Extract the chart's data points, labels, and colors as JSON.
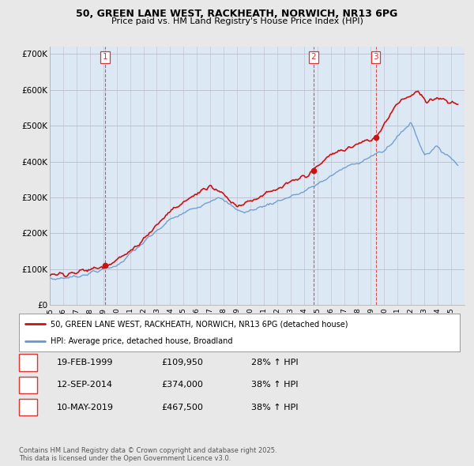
{
  "title_line1": "50, GREEN LANE WEST, RACKHEATH, NORWICH, NR13 6PG",
  "title_line2": "Price paid vs. HM Land Registry's House Price Index (HPI)",
  "background_color": "#e8e8e8",
  "plot_bg_color": "#dde8f5",
  "ylabel": "",
  "ylim": [
    0,
    720000
  ],
  "yticks": [
    0,
    100000,
    200000,
    300000,
    400000,
    500000,
    600000,
    700000
  ],
  "ytick_labels": [
    "£0",
    "£100K",
    "£200K",
    "£300K",
    "£400K",
    "£500K",
    "£600K",
    "£700K"
  ],
  "xmin": 1995,
  "xmax": 2026,
  "sale_dates": [
    1999.12,
    2014.7,
    2019.36
  ],
  "sale_prices": [
    109950,
    374000,
    467500
  ],
  "sale_labels": [
    "1",
    "2",
    "3"
  ],
  "vline_color": "#dd3333",
  "red_line_color": "#cc1111",
  "blue_line_color": "#6699cc",
  "legend_line1": "50, GREEN LANE WEST, RACKHEATH, NORWICH, NR13 6PG (detached house)",
  "legend_line2": "HPI: Average price, detached house, Broadland",
  "table_entries": [
    {
      "num": "1",
      "date": "19-FEB-1999",
      "price": "£109,950",
      "change": "28% ↑ HPI"
    },
    {
      "num": "2",
      "date": "12-SEP-2014",
      "price": "£374,000",
      "change": "38% ↑ HPI"
    },
    {
      "num": "3",
      "date": "10-MAY-2019",
      "price": "£467,500",
      "change": "38% ↑ HPI"
    }
  ],
  "footer": "Contains HM Land Registry data © Crown copyright and database right 2025.\nThis data is licensed under the Open Government Licence v3.0."
}
